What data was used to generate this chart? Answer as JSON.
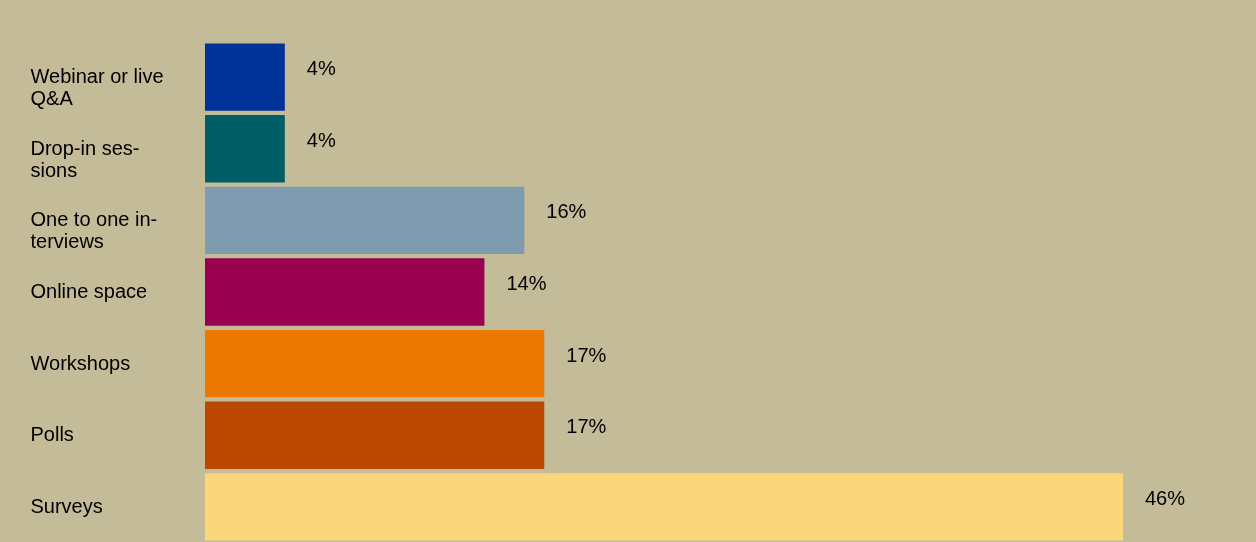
{
  "chart_data": {
    "type": "bar",
    "orientation": "horizontal",
    "categories": [
      "Webinar or live\nQ&A",
      "Drop-in ses-\nsions",
      "One to one in-\nterviews",
      "Online space",
      "Workshops",
      "Polls",
      "Surveys"
    ],
    "values": [
      4,
      4,
      16,
      14,
      17,
      17,
      46
    ],
    "colors": [
      "#003399",
      "#005f66",
      "#7f9bb0",
      "#990050",
      "#ed7800",
      "#bb4800",
      "#fcd67a"
    ],
    "value_labels": [
      "4%",
      "4%",
      "16%",
      "14%",
      "17%",
      "17%",
      "46%"
    ],
    "grid": false,
    "legend": false
  }
}
